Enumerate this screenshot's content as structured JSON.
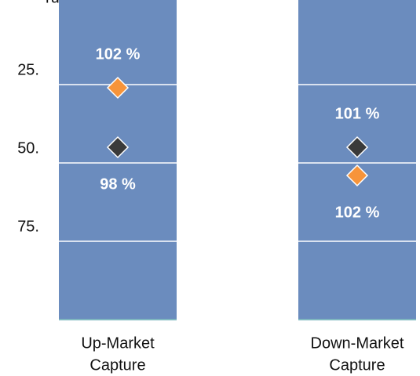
{
  "chart_data": {
    "type": "percentile_columns",
    "title": "rum Jahre",
    "categories": [
      [
        "Up-Market",
        "Capture"
      ],
      [
        "Down-Market",
        "Capture"
      ]
    ],
    "ylim": [
      0,
      100
    ],
    "reversed": true,
    "yticks": [
      {
        "value": 25,
        "label": "25."
      },
      {
        "value": 50,
        "label": "50."
      },
      {
        "value": 75,
        "label": "75."
      }
    ],
    "column_color": "#6b8cbe",
    "series": [
      {
        "color": "#f7943a",
        "values": [
          26,
          54
        ],
        "data_labels": [
          "102 %",
          "102 %"
        ]
      },
      {
        "color": "#3a3a3a",
        "values": [
          45,
          45
        ],
        "data_labels": [
          "98 %",
          "101 %"
        ]
      }
    ]
  }
}
